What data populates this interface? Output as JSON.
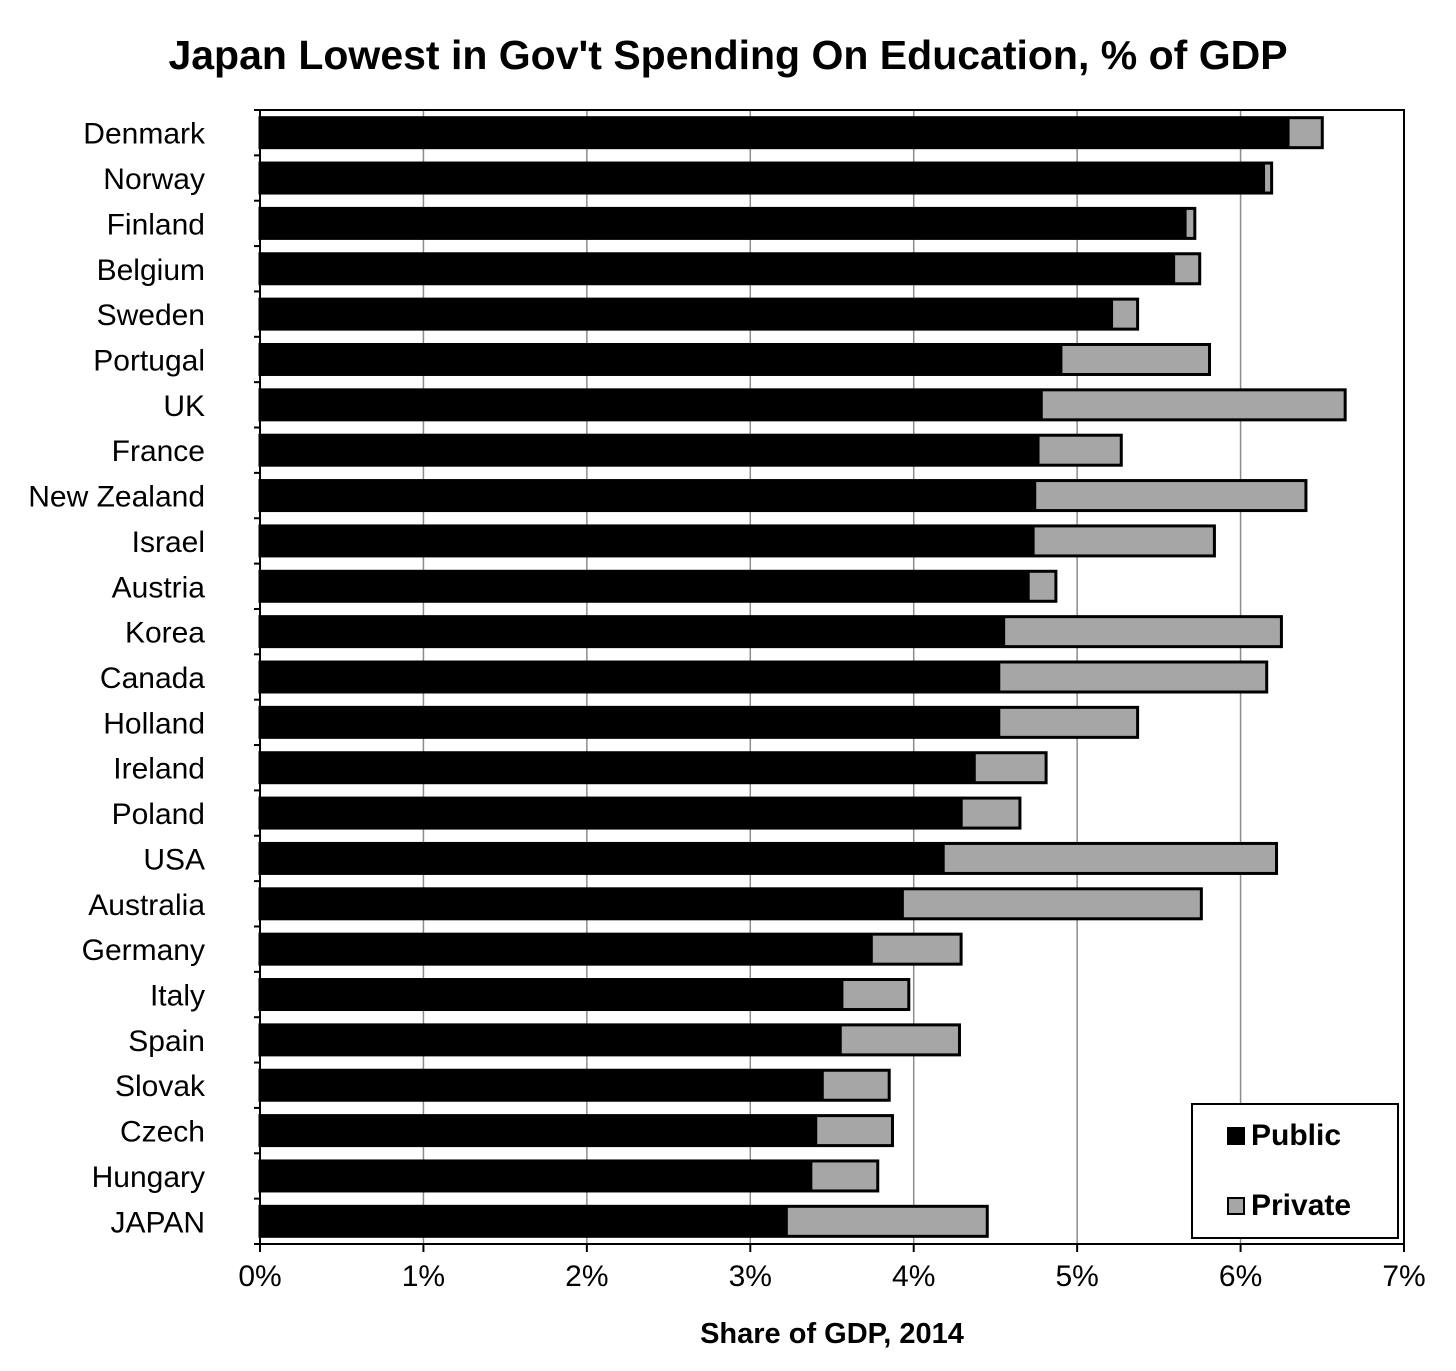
{
  "chart_data": {
    "type": "bar",
    "orientation": "horizontal",
    "stacked": true,
    "title": "Japan Lowest in Gov't Spending On Education, % of GDP",
    "xlabel": "Share of GDP, 2014",
    "ylabel": "",
    "xlim": [
      0,
      7
    ],
    "x_ticks": [
      "0%",
      "1%",
      "2%",
      "3%",
      "4%",
      "5%",
      "6%",
      "7%"
    ],
    "grid": "vertical gridlines at each 1%",
    "legend_position": "bottom-right",
    "categories": [
      "Denmark",
      "Norway",
      "Finland",
      "Belgium",
      "Sweden",
      "Portugal",
      "UK",
      "France",
      "New Zealand",
      "Israel",
      "Austria",
      "Korea",
      "Canada",
      "Holland",
      "Ireland",
      "Poland",
      "USA",
      "Australia",
      "Germany",
      "Italy",
      "Spain",
      "Slovak",
      "Czech",
      "Hungary",
      "JAPAN"
    ],
    "series": [
      {
        "name": "Public",
        "color": "#000000",
        "values": [
          6.3,
          6.15,
          5.67,
          5.6,
          5.22,
          4.91,
          4.79,
          4.77,
          4.75,
          4.74,
          4.71,
          4.56,
          4.53,
          4.53,
          4.38,
          4.3,
          4.19,
          3.94,
          3.75,
          3.57,
          3.56,
          3.45,
          3.41,
          3.38,
          3.23
        ]
      },
      {
        "name": "Private",
        "color": "#a6a6a6",
        "values": [
          0.2,
          0.04,
          0.05,
          0.15,
          0.15,
          0.9,
          1.85,
          0.5,
          1.65,
          1.1,
          0.16,
          1.69,
          1.63,
          0.84,
          0.43,
          0.35,
          2.03,
          1.82,
          0.54,
          0.4,
          0.72,
          0.4,
          0.46,
          0.4,
          1.22
        ]
      }
    ]
  },
  "legend": {
    "public_label": "Public",
    "private_label": "Private"
  }
}
